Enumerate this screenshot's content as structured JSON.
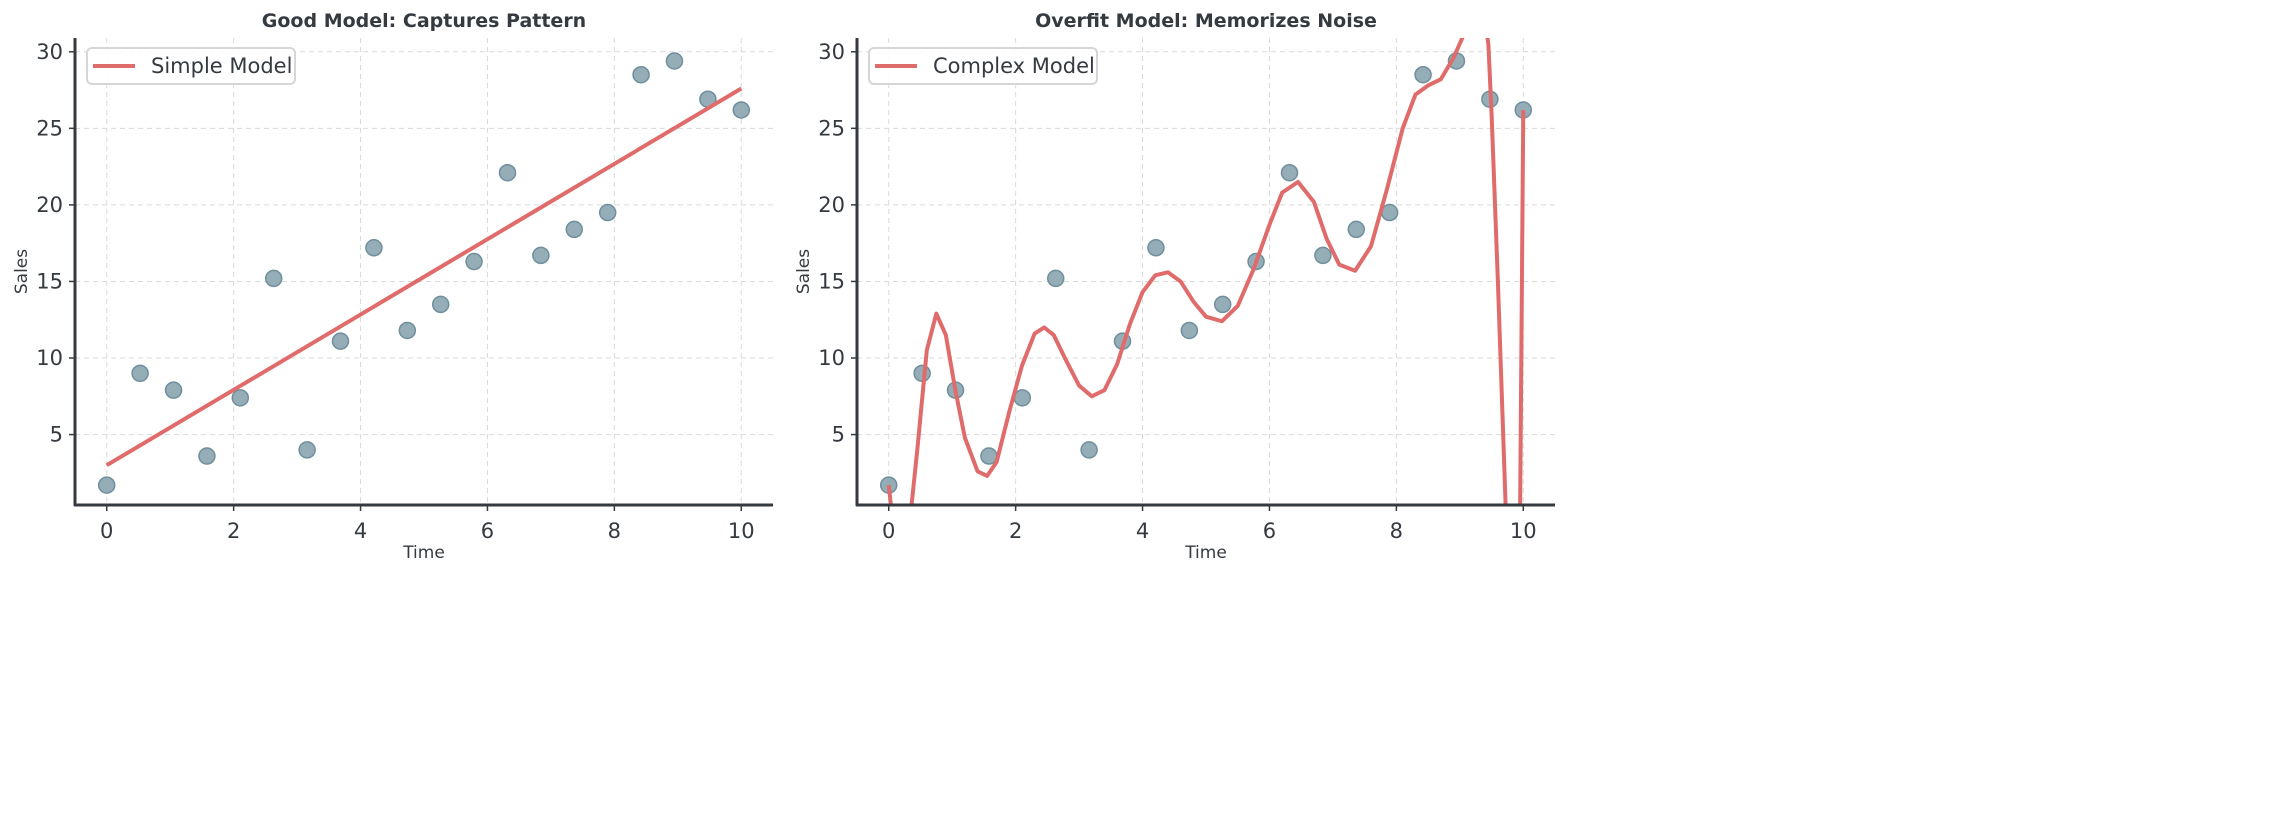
{
  "chart_data": [
    {
      "type": "scatter+line",
      "title": "Good Model: Captures Pattern",
      "xlabel": "Time",
      "ylabel": "Sales",
      "xlim": [
        -0.5,
        10.5
      ],
      "ylim": [
        0.4,
        30.9
      ],
      "xticks": [
        0,
        2,
        4,
        6,
        8,
        10
      ],
      "yticks": [
        5,
        10,
        15,
        20,
        25,
        30
      ],
      "grid": true,
      "legend": "top-left",
      "legend_label": "Simple Model",
      "points_x": [
        0,
        0.526,
        1.053,
        1.579,
        2.105,
        2.632,
        3.158,
        3.684,
        4.211,
        4.737,
        5.263,
        5.789,
        6.316,
        6.842,
        7.368,
        7.895,
        8.421,
        8.947,
        9.474,
        10
      ],
      "points_y": [
        1.7,
        9.0,
        7.9,
        3.6,
        7.4,
        15.2,
        4.0,
        11.1,
        17.2,
        11.8,
        13.5,
        16.3,
        22.1,
        16.7,
        18.4,
        19.5,
        28.5,
        29.4,
        26.9,
        26.2
      ],
      "line": [
        [
          0,
          3.0
        ],
        [
          10,
          27.6
        ]
      ]
    },
    {
      "type": "scatter+line",
      "title": "Overfit Model: Memorizes Noise",
      "xlabel": "Time",
      "ylabel": "Sales",
      "xlim": [
        -0.5,
        10.5
      ],
      "ylim": [
        0.4,
        30.9
      ],
      "xticks": [
        0,
        2,
        4,
        6,
        8,
        10
      ],
      "yticks": [
        5,
        10,
        15,
        20,
        25,
        30
      ],
      "grid": true,
      "legend": "top-left",
      "legend_label": "Complex Model",
      "points_x": [
        0,
        0.526,
        1.053,
        1.579,
        2.105,
        2.632,
        3.158,
        3.684,
        4.211,
        4.737,
        5.263,
        5.789,
        6.316,
        6.842,
        7.368,
        7.895,
        8.421,
        8.947,
        9.474,
        10
      ],
      "points_y": [
        1.7,
        9.0,
        7.9,
        3.6,
        7.4,
        15.2,
        4.0,
        11.1,
        17.2,
        11.8,
        13.5,
        16.3,
        22.1,
        16.7,
        18.4,
        19.5,
        28.5,
        29.4,
        26.9,
        26.2
      ],
      "line": [
        [
          0,
          1.7
        ],
        [
          0.15,
          -4
        ],
        [
          0.3,
          -2
        ],
        [
          0.45,
          4
        ],
        [
          0.6,
          10.5
        ],
        [
          0.75,
          12.9
        ],
        [
          0.9,
          11.5
        ],
        [
          1.05,
          7.9
        ],
        [
          1.2,
          4.8
        ],
        [
          1.4,
          2.6
        ],
        [
          1.55,
          2.3
        ],
        [
          1.7,
          3.2
        ],
        [
          1.9,
          6.5
        ],
        [
          2.1,
          9.5
        ],
        [
          2.3,
          11.6
        ],
        [
          2.45,
          12.0
        ],
        [
          2.6,
          11.5
        ],
        [
          2.8,
          9.8
        ],
        [
          3.0,
          8.2
        ],
        [
          3.2,
          7.5
        ],
        [
          3.4,
          7.9
        ],
        [
          3.6,
          9.6
        ],
        [
          3.8,
          12.2
        ],
        [
          4.0,
          14.3
        ],
        [
          4.2,
          15.4
        ],
        [
          4.4,
          15.6
        ],
        [
          4.6,
          15.0
        ],
        [
          4.8,
          13.7
        ],
        [
          5.0,
          12.7
        ],
        [
          5.25,
          12.4
        ],
        [
          5.5,
          13.4
        ],
        [
          5.75,
          15.8
        ],
        [
          6.0,
          18.7
        ],
        [
          6.2,
          20.8
        ],
        [
          6.45,
          21.5
        ],
        [
          6.7,
          20.2
        ],
        [
          6.9,
          17.8
        ],
        [
          7.1,
          16.1
        ],
        [
          7.35,
          15.7
        ],
        [
          7.6,
          17.3
        ],
        [
          7.85,
          21.0
        ],
        [
          8.1,
          25.0
        ],
        [
          8.3,
          27.2
        ],
        [
          8.5,
          27.8
        ],
        [
          8.7,
          28.2
        ],
        [
          8.9,
          29.6
        ],
        [
          9.05,
          31
        ],
        [
          9.2,
          33
        ],
        [
          9.3,
          34
        ],
        [
          9.4,
          32
        ],
        [
          9.45,
          30.5
        ],
        [
          9.5,
          26
        ],
        [
          9.6,
          15
        ],
        [
          9.7,
          3
        ],
        [
          9.75,
          -3
        ],
        [
          9.85,
          -10
        ],
        [
          9.95,
          0
        ],
        [
          10,
          26.2
        ]
      ]
    }
  ],
  "colors": {
    "line": "#e06b6b",
    "point": "#8fa9b3",
    "point_edge": "#6f8f9c",
    "text": "#343a40",
    "grid": "#d9d9d9"
  }
}
